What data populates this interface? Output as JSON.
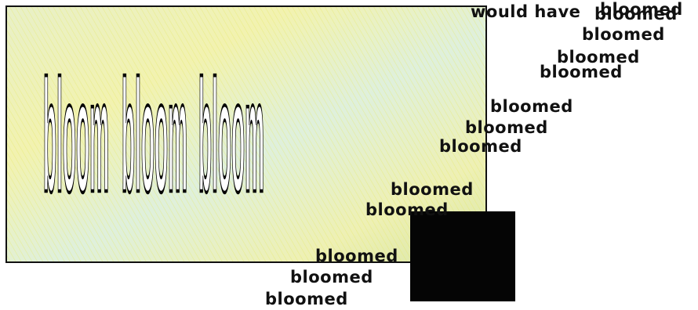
{
  "poem": {
    "tall_words": [
      "bloom",
      "bloom",
      "bloom"
    ],
    "lead": "would have",
    "words": [
      "bloomed",
      "bloomed",
      "bloomed",
      "bloomed",
      "bloomed",
      "bloomed",
      "bloomed",
      "bloomed",
      "bloomed",
      "bloomed",
      "bloomed",
      "bloomed",
      "bloomed"
    ]
  }
}
